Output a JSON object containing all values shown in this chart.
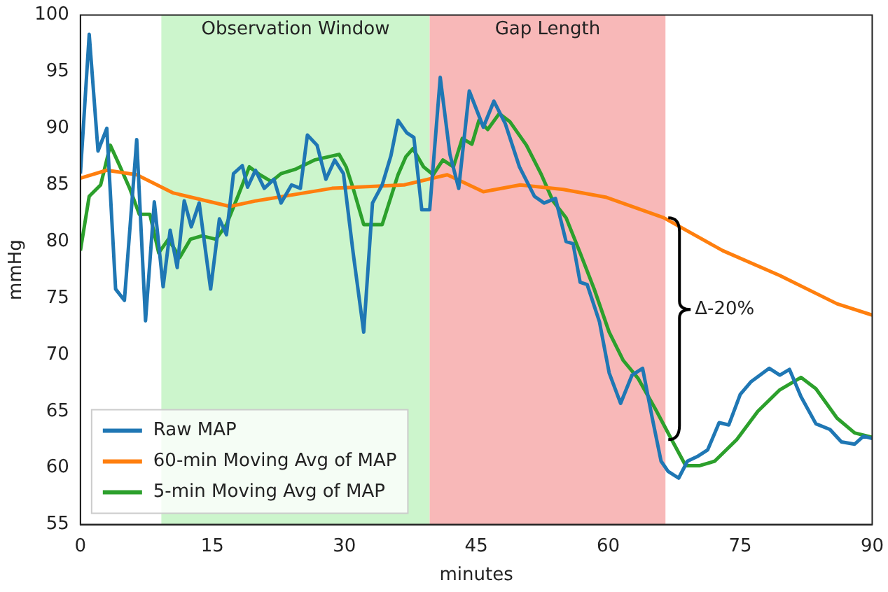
{
  "chart_data": {
    "type": "line",
    "xlabel": "minutes",
    "ylabel": "mmHg",
    "xlim": [
      0,
      90
    ],
    "xticks": [
      0,
      15,
      30,
      45,
      60,
      75,
      90
    ],
    "ylim": [
      55,
      100
    ],
    "yticks": [
      55,
      60,
      65,
      70,
      75,
      80,
      85,
      90,
      95,
      100
    ],
    "grid": false,
    "legend": "bottom left",
    "marker": "none",
    "line_style": "solid",
    "bands": [
      {
        "axis": "x",
        "from": 9.2,
        "to": 39.7,
        "label": "Observation Window",
        "color": "#ccf5cc"
      },
      {
        "axis": "x",
        "from": 39.7,
        "to": 66.5,
        "label": "Gap Length",
        "color": "#f8b8b8"
      }
    ],
    "annotations": [
      {
        "text": "Δ-20%",
        "x": 66.5,
        "y": 74
      }
    ],
    "series": [
      {
        "name": "Raw MAP",
        "color": "#1f77b4",
        "x": [
          0,
          1,
          2,
          3,
          4,
          5,
          6.4,
          7.4,
          8.4,
          9.4,
          10.2,
          11,
          11.8,
          12.6,
          13.5,
          14.8,
          15.8,
          16.6,
          17.4,
          18.4,
          19,
          19.9,
          20.9,
          22,
          22.8,
          24,
          25,
          25.8,
          26.9,
          27.9,
          28.9,
          29.9,
          31,
          32.2,
          33.2,
          34.3,
          35.3,
          36.1,
          37.1,
          37.9,
          38.8,
          39.7,
          40.9,
          42,
          43,
          44.2,
          45.8,
          47,
          48.3,
          49.9,
          51.6,
          52.7,
          54,
          55.2,
          56,
          56.8,
          57.6,
          59,
          60.1,
          61.4,
          62.7,
          63.9,
          65,
          66,
          66.8,
          68,
          69,
          70.1,
          71.3,
          72.6,
          73.7,
          75,
          76.2,
          78.3,
          79.5,
          80.6,
          81.9,
          83.6,
          85.2,
          86.5,
          88,
          89,
          90
        ],
        "values": [
          86,
          98.3,
          88,
          90,
          75.8,
          74.8,
          89,
          73,
          83.5,
          76,
          81,
          77.7,
          83.6,
          81.3,
          83.4,
          75.8,
          82,
          80.6,
          86,
          86.7,
          84.8,
          86.3,
          84.7,
          85.5,
          83.4,
          85,
          84.7,
          89.4,
          88.5,
          85.5,
          87.2,
          86,
          79,
          72,
          83.4,
          85,
          87.6,
          90.7,
          89.6,
          89.2,
          82.8,
          82.8,
          94.5,
          87.7,
          84.7,
          93.3,
          90.1,
          92.4,
          90.4,
          86.6,
          84,
          83.4,
          83.8,
          80,
          79.8,
          76.4,
          76.2,
          72.9,
          68.4,
          65.7,
          68.2,
          68.8,
          64.4,
          60.6,
          59.7,
          59.1,
          60.6,
          61,
          61.6,
          64,
          63.8,
          66.5,
          67.6,
          68.8,
          68.2,
          68.7,
          66.3,
          63.9,
          63.4,
          62.3,
          62.1,
          62.8,
          62.6
        ]
      },
      {
        "name": "60-min Moving Avg of MAP",
        "color": "#ff7f0e",
        "x": [
          0,
          3,
          6.4,
          10.5,
          17,
          20,
          28.6,
          36.8,
          41.7,
          45.8,
          50,
          54.9,
          59.8,
          66.3,
          73,
          79.5,
          86,
          90
        ],
        "values": [
          85.6,
          86.3,
          85.9,
          84.3,
          83.1,
          83.6,
          84.7,
          85,
          85.9,
          84.4,
          85,
          84.6,
          83.9,
          82.1,
          79.2,
          77,
          74.5,
          73.5
        ]
      },
      {
        "name": "5-min Moving Avg of MAP",
        "color": "#2ca02c",
        "x": [
          0,
          1,
          2.3,
          3.4,
          4.4,
          5.6,
          6.7,
          7.9,
          8.9,
          10,
          11.3,
          12.5,
          13.8,
          15.4,
          16.6,
          17.9,
          19.2,
          20.4,
          21.7,
          22.8,
          24.5,
          26.6,
          29.4,
          30.2,
          31,
          32.2,
          34.3,
          36.1,
          37,
          37.8,
          39,
          40.1,
          41.2,
          42.4,
          43.4,
          44.5,
          45.3,
          46.3,
          47.6,
          48.8,
          50.7,
          52.4,
          53.7,
          55.2,
          56.8,
          58.4,
          60.1,
          61.7,
          63.4,
          65.5,
          67.2,
          68.8,
          70.4,
          72.1,
          74.6,
          77,
          79.5,
          81.9,
          83.6,
          86,
          88,
          90
        ],
        "values": [
          79.2,
          84,
          85,
          88.5,
          86.8,
          84.7,
          82.4,
          82.4,
          79,
          80.2,
          78.6,
          80.2,
          80.5,
          80.2,
          81.5,
          84,
          86.6,
          85.9,
          85.3,
          86,
          86.4,
          87.2,
          87.7,
          86.6,
          84.7,
          81.5,
          81.5,
          85.9,
          87.5,
          88.2,
          86.6,
          85.9,
          87.2,
          86.6,
          89.1,
          88.6,
          90.7,
          89.9,
          91.3,
          90.6,
          88.5,
          85.9,
          83.6,
          82.1,
          79,
          75.8,
          72,
          69.5,
          67.9,
          65,
          62.5,
          60.2,
          60.2,
          60.6,
          62.5,
          65,
          66.9,
          68,
          67,
          64.4,
          63.1,
          62.7
        ]
      }
    ]
  }
}
